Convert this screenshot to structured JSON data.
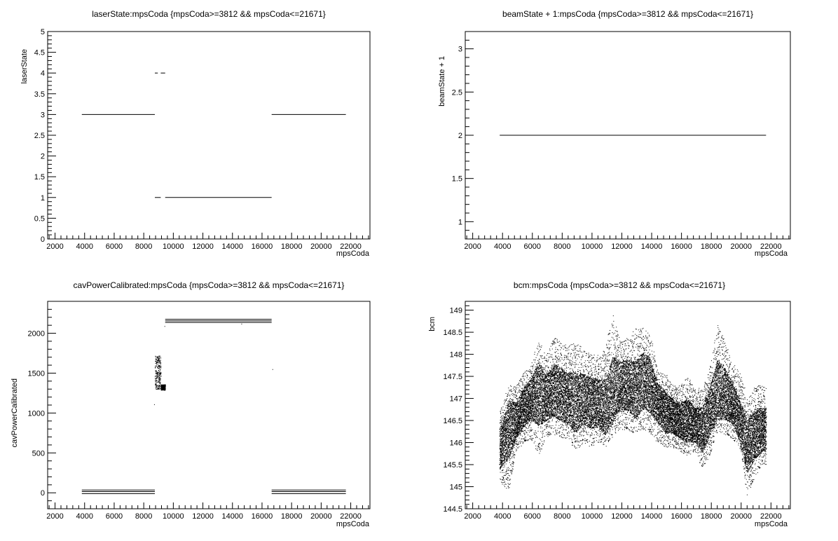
{
  "chart_data": [
    {
      "id": "p1",
      "type": "scatter",
      "title": "laserState:mpsCoda {mpsCoda>=3812 && mpsCoda<=21671}",
      "xlabel": "mpsCoda",
      "ylabel": "laserState",
      "xlim": [
        1500,
        23300
      ],
      "ylim": [
        0,
        5
      ],
      "xticks": [
        2000,
        4000,
        6000,
        8000,
        10000,
        12000,
        14000,
        16000,
        18000,
        20000,
        22000
      ],
      "yticks": [
        0,
        0.5,
        1,
        1.5,
        2,
        2.5,
        3,
        3.5,
        4,
        4.5,
        5
      ],
      "segments": [
        {
          "x": [
            3812,
            8750
          ],
          "y": 3
        },
        {
          "x": [
            8750,
            8950
          ],
          "y": 4
        },
        {
          "x": [
            9150,
            9450
          ],
          "y": 4
        },
        {
          "x": [
            8750,
            9150
          ],
          "y": 1
        },
        {
          "x": [
            9450,
            16650
          ],
          "y": 1
        },
        {
          "x": [
            16650,
            21671
          ],
          "y": 3
        }
      ]
    },
    {
      "id": "p2",
      "type": "scatter",
      "title": "beamState + 1:mpsCoda {mpsCoda>=3812 && mpsCoda<=21671}",
      "xlabel": "mpsCoda",
      "ylabel": "beamState + 1",
      "xlim": [
        1500,
        23300
      ],
      "ylim": [
        0.8,
        3.2
      ],
      "xticks": [
        2000,
        4000,
        6000,
        8000,
        10000,
        12000,
        14000,
        16000,
        18000,
        20000,
        22000
      ],
      "yticks": [
        1,
        1.5,
        2,
        2.5,
        3
      ],
      "segments": [
        {
          "x": [
            3812,
            21671
          ],
          "y": 2
        }
      ]
    },
    {
      "id": "p3",
      "type": "scatter",
      "title": "cavPowerCalibrated:mpsCoda {mpsCoda>=3812 && mpsCoda<=21671}",
      "xlabel": "mpsCoda",
      "ylabel": "cavPowerCalibrated",
      "xlim": [
        1500,
        23300
      ],
      "ylim": [
        -200,
        2400
      ],
      "xticks": [
        2000,
        4000,
        6000,
        8000,
        10000,
        12000,
        14000,
        16000,
        18000,
        20000,
        22000
      ],
      "yticks": [
        0,
        500,
        1000,
        1500,
        2000
      ],
      "segments": [
        {
          "x": [
            3812,
            8750
          ],
          "y": 35
        },
        {
          "x": [
            3812,
            8750
          ],
          "y": 15
        },
        {
          "x": [
            3812,
            8750
          ],
          "y": -10
        },
        {
          "x": [
            9450,
            16650
          ],
          "y": 2175
        },
        {
          "x": [
            9450,
            16650
          ],
          "y": 2155
        },
        {
          "x": [
            9450,
            16650
          ],
          "y": 2135
        },
        {
          "x": [
            16650,
            21671
          ],
          "y": 35
        },
        {
          "x": [
            16650,
            21671
          ],
          "y": 15
        },
        {
          "x": [
            16650,
            21671
          ],
          "y": -10
        }
      ],
      "clusters": [
        {
          "x": [
            8750,
            9150
          ],
          "y": [
            1300,
            1720
          ]
        },
        {
          "x": [
            9150,
            9450
          ],
          "y": [
            1290,
            1360
          ]
        }
      ],
      "outliers": [
        {
          "x": 8700,
          "y": 1110
        },
        {
          "x": 16700,
          "y": 1550
        },
        {
          "x": 14600,
          "y": 2120
        },
        {
          "x": 9400,
          "y": 2090
        }
      ]
    },
    {
      "id": "p4",
      "type": "scatter",
      "title": "bcm:mpsCoda {mpsCoda>=3812 && mpsCoda<=21671}",
      "xlabel": "mpsCoda",
      "ylabel": "bcm",
      "xlim": [
        1500,
        23300
      ],
      "ylim": [
        144.5,
        149.2
      ],
      "xticks": [
        2000,
        4000,
        6000,
        8000,
        10000,
        12000,
        14000,
        16000,
        18000,
        20000,
        22000
      ],
      "yticks": [
        144.5,
        145,
        145.5,
        146,
        146.5,
        147,
        147.5,
        148,
        148.5,
        149
      ],
      "band": {
        "x": [
          3900,
          4400,
          4900,
          5400,
          5900,
          6400,
          6900,
          7400,
          7900,
          8400,
          8900,
          9400,
          9900,
          10400,
          10900,
          11400,
          11900,
          12400,
          12900,
          13400,
          13900,
          14400,
          14900,
          15400,
          15900,
          16400,
          16900,
          17400,
          17900,
          18400,
          18900,
          19400,
          19900,
          20400,
          20900,
          21400
        ],
        "center": [
          145.9,
          146.3,
          146.5,
          146.8,
          147.0,
          147.1,
          147.0,
          147.2,
          147.1,
          147.0,
          146.9,
          147.0,
          146.9,
          146.9,
          146.8,
          147.2,
          147.3,
          147.3,
          147.2,
          147.4,
          147.3,
          146.9,
          146.7,
          146.6,
          146.5,
          146.5,
          146.4,
          146.3,
          146.7,
          147.2,
          147.1,
          146.9,
          146.5,
          145.9,
          146.2,
          146.3
        ],
        "min": [
          145.1,
          144.9,
          145.8,
          146.0,
          146.1,
          145.7,
          146.1,
          146.2,
          146.1,
          146.1,
          145.8,
          146.0,
          145.9,
          146.0,
          145.9,
          146.1,
          146.3,
          146.3,
          146.2,
          146.3,
          146.2,
          146.0,
          145.9,
          145.9,
          145.8,
          145.7,
          145.8,
          145.4,
          145.7,
          146.2,
          146.2,
          146.1,
          145.9,
          144.8,
          145.2,
          145.5
        ],
        "max": [
          146.8,
          147.3,
          147.3,
          147.6,
          147.8,
          148.3,
          148.0,
          148.4,
          148.3,
          148.2,
          148.3,
          148.1,
          148.0,
          148.0,
          148.2,
          148.9,
          148.3,
          148.4,
          148.6,
          148.6,
          148.5,
          147.6,
          147.6,
          147.3,
          147.3,
          147.5,
          147.2,
          147.3,
          147.7,
          148.7,
          148.3,
          147.8,
          147.6,
          147.0,
          147.3,
          147.3
        ]
      }
    }
  ]
}
